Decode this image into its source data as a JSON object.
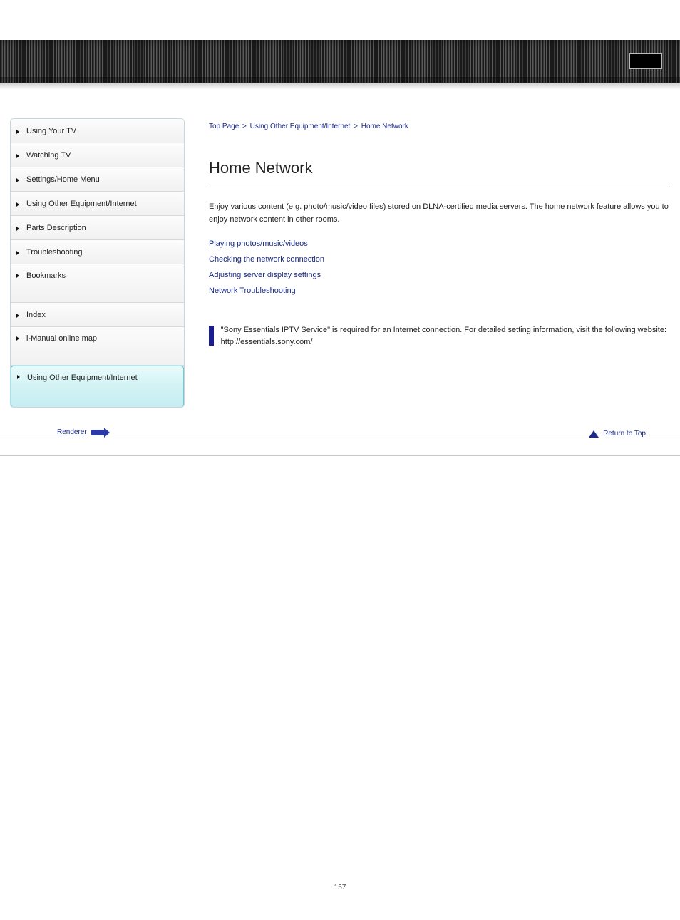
{
  "header": {
    "button_label": ""
  },
  "sidebar": {
    "items": [
      {
        "label": "Using Your TV"
      },
      {
        "label": "Watching TV"
      },
      {
        "label": "Settings/Home Menu"
      },
      {
        "label": "Using Other Equipment/Internet"
      },
      {
        "label": "Parts Description"
      },
      {
        "label": "Troubleshooting"
      },
      {
        "label": "Bookmarks"
      },
      {
        "label": "Index"
      },
      {
        "label": "i-Manual online map"
      }
    ],
    "active": {
      "label": "Using Other Equipment/Internet"
    }
  },
  "breadcrumb": {
    "items": [
      "Top Page",
      "Using Other Equipment/Internet",
      "Home Network"
    ]
  },
  "page_title": "Home Network",
  "intro": "Enjoy various content (e.g. photo/music/video files) stored on DLNA-certified media servers. The home network feature allows you to enjoy network content in other rooms.",
  "links": [
    "Playing photos/music/videos",
    "Checking the network connection",
    "Adjusting server display settings",
    "Network Troubleshooting"
  ],
  "tip": "\"Sony Essentials IPTV Service\" is required for an Internet connection. For detailed setting information, visit the following website: http://essentials.sony.com/",
  "footer": {
    "next": "Renderer",
    "top": "Return to Top"
  },
  "page_number": "157",
  "colors": {
    "accent": "#1a1d8f",
    "link": "#1a2a88",
    "active_bg": "#d6f3f6",
    "border": "#8a8a8a"
  }
}
